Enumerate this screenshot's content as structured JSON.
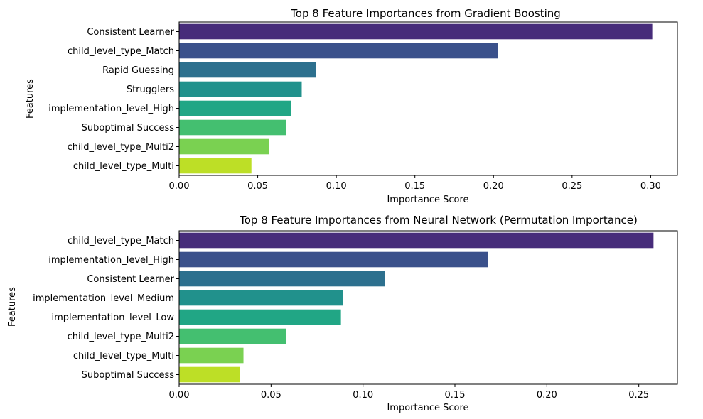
{
  "chart_data": [
    {
      "type": "bar",
      "orientation": "horizontal",
      "title": "Top 8 Feature Importances from Gradient Boosting",
      "xlabel": "Importance Score",
      "ylabel": "Features",
      "categories": [
        "Consistent Learner",
        "child_level_type_Match",
        "Rapid Guessing",
        "Strugglers",
        "implementation_level_High",
        "Suboptimal Success",
        "child_level_type_Multi2",
        "child_level_type_Multi"
      ],
      "values": [
        0.301,
        0.203,
        0.087,
        0.078,
        0.071,
        0.068,
        0.057,
        0.046
      ],
      "xlim": [
        0,
        0.317
      ],
      "xticks": [
        0.0,
        0.05,
        0.1,
        0.15,
        0.2,
        0.25,
        0.3
      ],
      "xtick_labels": [
        "0.00",
        "0.05",
        "0.10",
        "0.15",
        "0.20",
        "0.25",
        "0.30"
      ],
      "grid": false,
      "legend": "none",
      "colors": [
        "#472c7a",
        "#3b518b",
        "#2d708e",
        "#21918c",
        "#21a685",
        "#44bf70",
        "#7ad151",
        "#bddf26"
      ]
    },
    {
      "type": "bar",
      "orientation": "horizontal",
      "title": "Top 8 Feature Importances from Neural Network (Permutation Importance)",
      "xlabel": "Importance Score",
      "ylabel": "Features",
      "categories": [
        "child_level_type_Match",
        "implementation_level_High",
        "Consistent Learner",
        "implementation_level_Medium",
        "implementation_level_Low",
        "child_level_type_Multi2",
        "child_level_type_Multi",
        "Suboptimal Success"
      ],
      "values": [
        0.258,
        0.168,
        0.112,
        0.089,
        0.088,
        0.058,
        0.035,
        0.033
      ],
      "xlim": [
        0,
        0.271
      ],
      "xticks": [
        0.0,
        0.05,
        0.1,
        0.15,
        0.2,
        0.25
      ],
      "xtick_labels": [
        "0.00",
        "0.05",
        "0.10",
        "0.15",
        "0.20",
        "0.25"
      ],
      "grid": false,
      "legend": "none",
      "colors": [
        "#472c7a",
        "#3b518b",
        "#2d708e",
        "#21918c",
        "#21a685",
        "#44bf70",
        "#7ad151",
        "#bddf26"
      ]
    }
  ]
}
